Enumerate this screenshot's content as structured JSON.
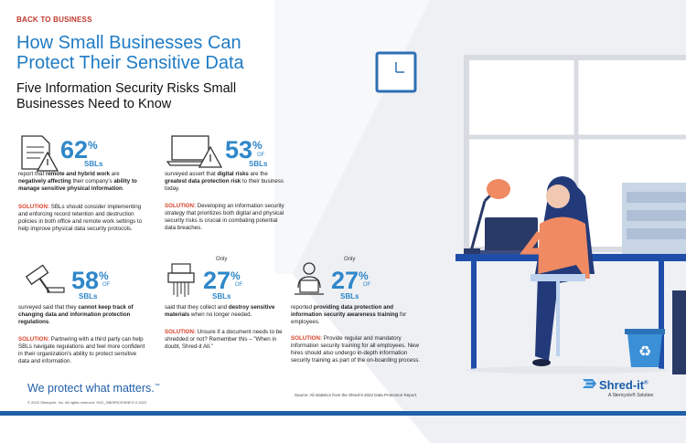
{
  "header": {
    "tag": "BACK TO BUSINESS",
    "title": "How Small Businesses Can Protect Their Sensitive Data",
    "subtitle": "Five Information Security Risks Small Businesses Need to Know"
  },
  "stats": [
    {
      "only": "",
      "percent": "62",
      "of": "",
      "sbls": "SBLs",
      "text_pre": "report that ",
      "text_bold1": "remote and hybrid work",
      "text_mid": " are ",
      "text_bold2": "negatively affecting",
      "text_mid2": " their company's ",
      "text_bold3": "ability to manage sensitive physical information",
      "text_end": ".",
      "solution_label": "SOLUTION:",
      "solution": " SBLs should consider implementing and enforcing record retention and destruction policies in both office and remote work settings to help improve physical data security protocols."
    },
    {
      "only": "",
      "percent": "53",
      "of": "OF",
      "sbls": "SBLs",
      "text_pre": "surveyed assert that ",
      "text_bold1": "digital risks",
      "text_mid": " are the ",
      "text_bold2": "greatest data protection risk",
      "text_mid2": " to their business today.",
      "text_bold3": "",
      "text_end": "",
      "solution_label": "SOLUTION:",
      "solution": " Developing an information security strategy that prioritizes both digital and physical security risks is crucial in combating potential data breaches."
    },
    {
      "only": "",
      "percent": "58",
      "of": "OF",
      "sbls": "SBLs",
      "text_pre": "surveyed said that they ",
      "text_bold1": "cannot keep track of changing data and information protection regulations",
      "text_mid": ".",
      "text_bold2": "",
      "text_mid2": "",
      "text_bold3": "",
      "text_end": "",
      "solution_label": "SOLUTION:",
      "solution": " Partnering with a third party can help SBLs navigate regulations and feel more confident in their organization's ability to protect sensitive data and information."
    },
    {
      "only": "Only",
      "percent": "27",
      "of": "OF",
      "sbls": "SBLs",
      "text_pre": "said that they collect and ",
      "text_bold1": "destroy sensitive materials",
      "text_mid": " when no longer needed.",
      "text_bold2": "",
      "text_mid2": "",
      "text_bold3": "",
      "text_end": "",
      "solution_label": "SOLUTION:",
      "solution": " Unsure if a document needs to be shredded or not? Remember this – \"When in doubt, Shred-it All.\""
    },
    {
      "only": "Only",
      "percent": "27",
      "of": "OF",
      "sbls": "SBLs",
      "text_pre": "reported ",
      "text_bold1": "providing data protection and information security awareness training",
      "text_mid": " for employees.",
      "text_bold2": "",
      "text_mid2": "",
      "text_bold3": "",
      "text_end": "",
      "solution_label": "SOLUTION:",
      "solution": " Provide regular and mandatory information security training for all employees. New hires should also undergo in-depth information security training as part of the on-boarding process."
    }
  ],
  "footer": {
    "slogan": "We protect what matters.",
    "trademark": "™",
    "copyright": "© 2022 Stericycle, Inc. All rights reserved.   SHC_SBISRICKSINFO 0 2022",
    "source": "Source: All statistics from the Shred-it 2022 Data Protection Report.",
    "logo": "Shred-it",
    "logo_reg": "®",
    "logo_sub": "A Stericycle® Solution"
  },
  "colors": {
    "accent_blue": "#2f87c9",
    "title_blue": "#1f7bc4",
    "solution_red": "#d9452b",
    "tag_red": "#c0392b"
  }
}
